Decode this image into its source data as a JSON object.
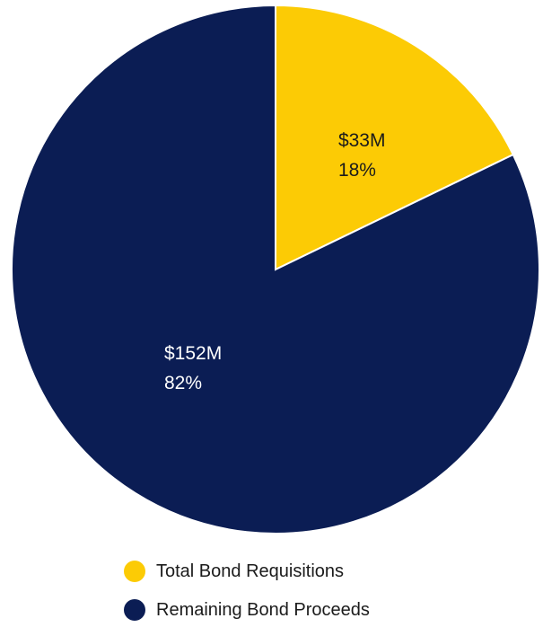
{
  "chart_data": {
    "type": "pie",
    "title": "",
    "start_angle_deg": 0,
    "direction": "clockwise",
    "slices": [
      {
        "name": "Total Bond Requisitions",
        "value": 33,
        "value_label": "$33M",
        "percent": 18,
        "percent_label": "18%",
        "color": "#fccb05",
        "label_color": "#1b1b1b"
      },
      {
        "name": "Remaining Bond Proceeds",
        "value": 152,
        "value_label": "$152M",
        "percent": 82,
        "percent_label": "82%",
        "color": "#0b1d54",
        "label_color": "#ffffff"
      }
    ],
    "legend_position": "bottom"
  }
}
